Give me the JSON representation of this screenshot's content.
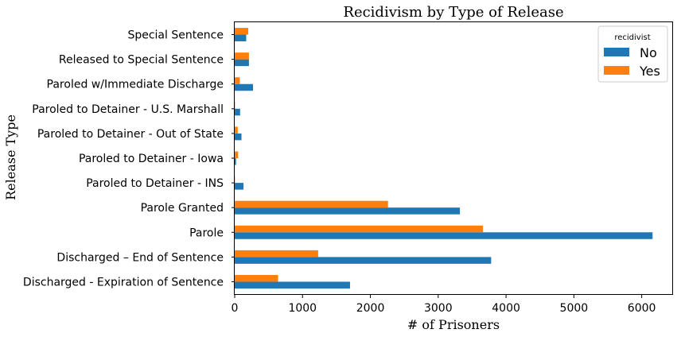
{
  "chart_data": {
    "type": "bar",
    "orientation": "horizontal",
    "title": "Recidivism by Type of Release",
    "xlabel": "# of Prisoners",
    "ylabel": "Release Type",
    "xlim": [
      0,
      6450
    ],
    "xticks": [
      0,
      1000,
      2000,
      3000,
      4000,
      5000,
      6000
    ],
    "grid": false,
    "legend": {
      "title": "recidivist",
      "placement": "top-right"
    },
    "categories": [
      "Discharged - Expiration of Sentence",
      "Discharged – End of Sentence",
      "Parole",
      "Parole Granted",
      "Paroled to Detainer - INS",
      "Paroled to Detainer - Iowa",
      "Paroled to Detainer - Out of State",
      "Paroled to Detainer - U.S. Marshall",
      "Paroled w/Immediate Discharge",
      "Released to Special Sentence",
      "Special Sentence"
    ],
    "series": [
      {
        "name": "No",
        "color": "#1f77b4",
        "values": [
          1700,
          3780,
          6160,
          3320,
          130,
          20,
          100,
          80,
          270,
          210,
          170
        ]
      },
      {
        "name": "Yes",
        "color": "#ff7f0e",
        "values": [
          640,
          1230,
          3660,
          2260,
          5,
          50,
          45,
          5,
          75,
          210,
          200
        ]
      }
    ]
  }
}
